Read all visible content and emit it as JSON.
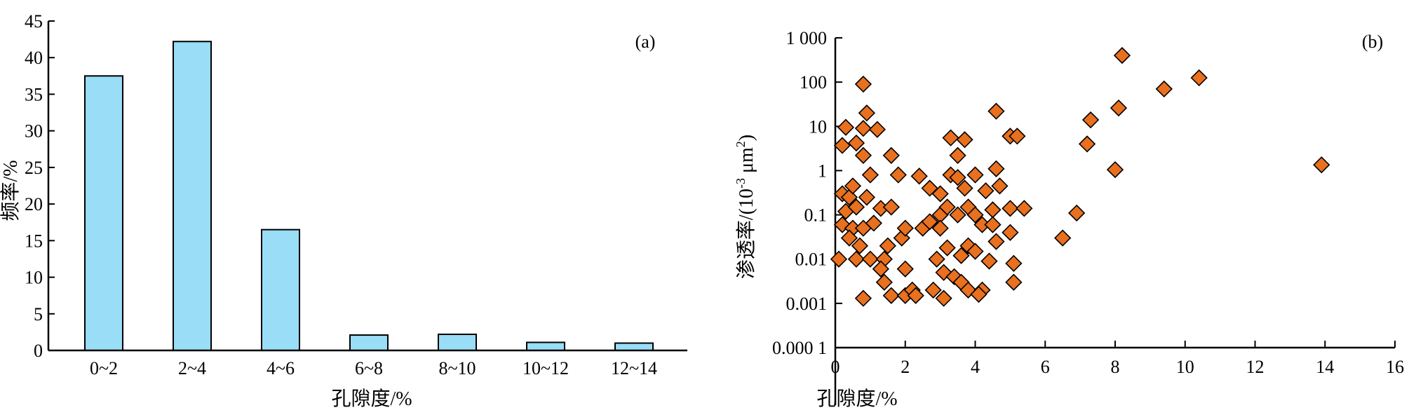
{
  "chart_data": [
    {
      "type": "bar",
      "panel_label": "(a)",
      "xlabel": "孔隙度/%",
      "ylabel": "频率/%",
      "categories": [
        "0~2",
        "2~4",
        "4~6",
        "6~8",
        "8~10",
        "10~12",
        "12~14"
      ],
      "values": [
        37.5,
        42.2,
        16.5,
        2.1,
        2.2,
        1.1,
        1.0
      ],
      "ylim": [
        0,
        45
      ],
      "yticks": [
        0,
        5,
        10,
        15,
        20,
        25,
        30,
        35,
        40,
        45
      ],
      "ytick_labels": [
        "0",
        "5",
        "10",
        "15",
        "20",
        "25",
        "30",
        "35",
        "40",
        "45"
      ],
      "bar_color": "#99DDF7",
      "grid": false
    },
    {
      "type": "scatter",
      "panel_label": "(b)",
      "xlabel": "孔隙度/%",
      "ylabel_main": "渗透率/(10",
      "ylabel_exp": "-3",
      "ylabel_unit": " μm",
      "ylabel_unit_exp": "2",
      "ylabel_close": ")",
      "xlim": [
        0,
        16
      ],
      "xticks": [
        0,
        2,
        4,
        6,
        8,
        10,
        12,
        14,
        16
      ],
      "xtick_labels": [
        "0",
        "2",
        "4",
        "6",
        "8",
        "10",
        "12",
        "14",
        "16"
      ],
      "yscale": "log",
      "ylim": [
        0.0001,
        1000
      ],
      "yticks": [
        0.0001,
        0.001,
        0.01,
        0.1,
        1,
        10,
        100,
        1000
      ],
      "ytick_labels": [
        "0.000 1",
        "0.001",
        "0.01",
        "0.1",
        "1",
        "10",
        "100",
        "1 000"
      ],
      "marker": "diamond",
      "marker_color": "#E8701E",
      "grid": false,
      "points": [
        [
          0.8,
          90
        ],
        [
          0.9,
          20
        ],
        [
          0.8,
          9
        ],
        [
          1.2,
          8.5
        ],
        [
          0.3,
          9.5
        ],
        [
          0.2,
          3.7
        ],
        [
          0.6,
          4.2
        ],
        [
          0.8,
          2.2
        ],
        [
          0.2,
          0.3
        ],
        [
          0.4,
          0.25
        ],
        [
          0.5,
          0.45
        ],
        [
          0.9,
          0.25
        ],
        [
          1.0,
          0.8
        ],
        [
          0.3,
          0.12
        ],
        [
          0.6,
          0.15
        ],
        [
          0.2,
          0.06
        ],
        [
          0.5,
          0.05
        ],
        [
          0.8,
          0.05
        ],
        [
          1.1,
          0.065
        ],
        [
          0.4,
          0.03
        ],
        [
          0.7,
          0.02
        ],
        [
          0.1,
          0.01
        ],
        [
          0.6,
          0.01
        ],
        [
          1.0,
          0.01
        ],
        [
          0.8,
          0.0013
        ],
        [
          1.3,
          0.14
        ],
        [
          1.6,
          0.15
        ],
        [
          1.5,
          0.02
        ],
        [
          1.4,
          0.01
        ],
        [
          1.3,
          0.006
        ],
        [
          1.4,
          0.003
        ],
        [
          1.6,
          0.0015
        ],
        [
          1.9,
          0.03
        ],
        [
          2.0,
          0.006
        ],
        [
          2.0,
          0.0015
        ],
        [
          2.2,
          0.002
        ],
        [
          2.3,
          0.0015
        ],
        [
          1.8,
          0.8
        ],
        [
          1.6,
          2.2
        ],
        [
          2.0,
          0.05
        ],
        [
          2.5,
          0.05
        ],
        [
          2.7,
          0.07
        ],
        [
          2.4,
          0.75
        ],
        [
          2.7,
          0.4
        ],
        [
          3.0,
          0.3
        ],
        [
          3.3,
          0.8
        ],
        [
          3.0,
          0.1
        ],
        [
          3.2,
          0.15
        ],
        [
          3.5,
          0.1
        ],
        [
          3.0,
          0.05
        ],
        [
          3.2,
          0.018
        ],
        [
          2.9,
          0.01
        ],
        [
          3.1,
          0.005
        ],
        [
          3.4,
          0.004
        ],
        [
          3.6,
          0.003
        ],
        [
          2.8,
          0.002
        ],
        [
          3.1,
          0.0013
        ],
        [
          3.3,
          5.5
        ],
        [
          3.5,
          2.2
        ],
        [
          3.7,
          5
        ],
        [
          3.5,
          0.7
        ],
        [
          3.7,
          0.4
        ],
        [
          4.0,
          0.8
        ],
        [
          3.8,
          0.15
        ],
        [
          4.0,
          0.1
        ],
        [
          4.2,
          0.06
        ],
        [
          3.8,
          0.02
        ],
        [
          4.0,
          0.015
        ],
        [
          3.6,
          0.012
        ],
        [
          3.8,
          0.002
        ],
        [
          4.2,
          0.002
        ],
        [
          4.1,
          0.0016
        ],
        [
          4.3,
          0.35
        ],
        [
          4.6,
          22
        ],
        [
          4.6,
          1.1
        ],
        [
          4.7,
          0.45
        ],
        [
          4.5,
          0.13
        ],
        [
          4.5,
          0.06
        ],
        [
          4.6,
          0.025
        ],
        [
          4.4,
          0.009
        ],
        [
          5.0,
          6
        ],
        [
          5.2,
          6
        ],
        [
          5.0,
          0.14
        ],
        [
          5.4,
          0.14
        ],
        [
          5.0,
          0.04
        ],
        [
          5.1,
          0.008
        ],
        [
          5.1,
          0.003
        ],
        [
          6.5,
          0.03
        ],
        [
          6.9,
          0.11
        ],
        [
          7.2,
          4
        ],
        [
          7.3,
          14
        ],
        [
          8.0,
          1.05
        ],
        [
          8.1,
          26
        ],
        [
          8.2,
          400
        ],
        [
          9.4,
          70
        ],
        [
          10.4,
          125
        ],
        [
          13.9,
          1.35
        ]
      ]
    }
  ]
}
